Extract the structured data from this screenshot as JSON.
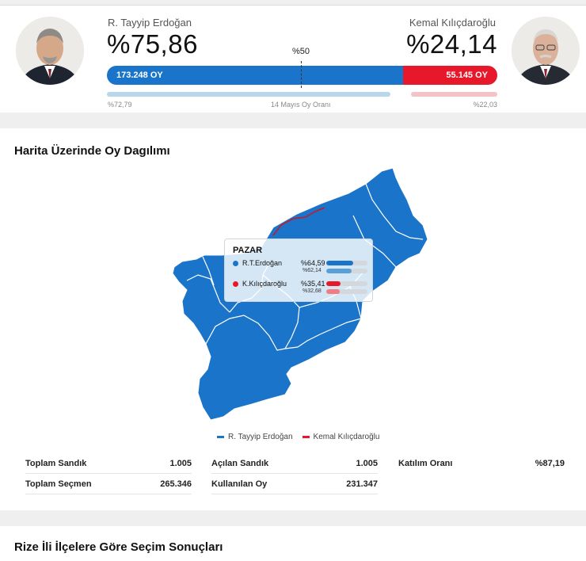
{
  "candidates": {
    "left": {
      "name": "R. Tayyip Erdoğan",
      "percent": "%75,86",
      "votes": "173.248 OY",
      "share": 0.7586,
      "prev_percent": "%72,79",
      "prev_share": 0.7279,
      "color": "#1a74c9"
    },
    "right": {
      "name": "Kemal Kılıçdaroğlu",
      "percent": "%24,14",
      "votes": "55.145 OY",
      "share": 0.2414,
      "prev_percent": "%22,03",
      "prev_share": 0.2203,
      "color": "#e8182b"
    }
  },
  "bar": {
    "half_label": "%50",
    "prev_caption": "14 Mayıs Oy Oranı"
  },
  "map": {
    "title": "Harita Üzerinde Oy Dagılımı",
    "tooltip": {
      "district": "PAZAR",
      "rows": [
        {
          "name": "R.T.Erdoğan",
          "percent": "%64,59",
          "prev": "%62,14",
          "share": 0.6459,
          "prev_share": 0.6214,
          "color": "#1a74c9",
          "prev_color": "#5aa0d8"
        },
        {
          "name": "K.Kılıçdaroğlu",
          "percent": "%35,41",
          "prev": "%32,68",
          "share": 0.3541,
          "prev_share": 0.3268,
          "color": "#e8182b",
          "prev_color": "#f07c84"
        }
      ]
    },
    "legend": [
      {
        "label": "R. Tayyip Erdoğan",
        "color": "#1a74c9"
      },
      {
        "label": "Kemal Kılıçdaroğlu",
        "color": "#e8182b"
      }
    ]
  },
  "stats": {
    "toplam_sandik": {
      "label": "Toplam Sandık",
      "value": "1.005"
    },
    "toplam_secmen": {
      "label": "Toplam Seçmen",
      "value": "265.346"
    },
    "acilan_sandik": {
      "label": "Açılan Sandık",
      "value": "1.005"
    },
    "kullanilan_oy": {
      "label": "Kullanılan Oy",
      "value": "231.347"
    },
    "katilim_orani": {
      "label": "Katılım Oranı",
      "value": "%87,19"
    }
  },
  "section2": {
    "title": "Rize İli İlçelere Göre Seçim Sonuçları"
  }
}
